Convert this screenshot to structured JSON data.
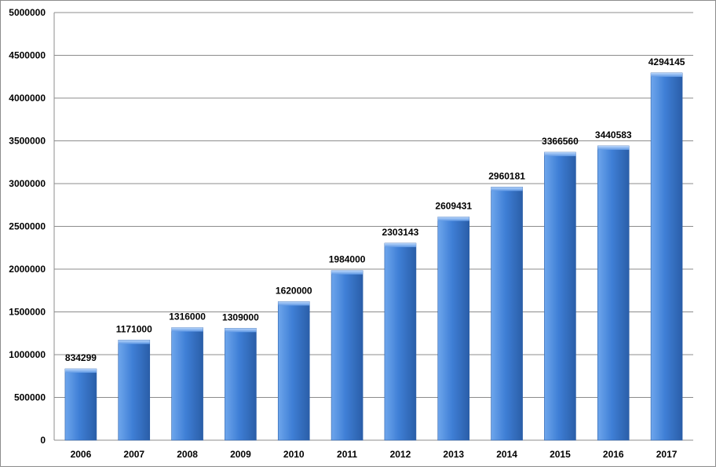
{
  "chart_data": {
    "type": "bar",
    "title": "",
    "xlabel": "",
    "ylabel": "",
    "categories": [
      "2006",
      "2007",
      "2008",
      "2009",
      "2010",
      "2011",
      "2012",
      "2013",
      "2014",
      "2015",
      "2016",
      "2017"
    ],
    "values": [
      834299,
      1171000,
      1316000,
      1309000,
      1620000,
      1984000,
      2303143,
      2609431,
      2960181,
      3366560,
      3440583,
      4294145
    ],
    "data_labels": [
      "834299",
      "1171000",
      "1316000",
      "1309000",
      "1620000",
      "1984000",
      "2303143",
      "2609431",
      "2960181",
      "3366560",
      "3440583",
      "4294145"
    ],
    "ylim": [
      0,
      5000000
    ],
    "y_ticks": [
      0,
      500000,
      1000000,
      1500000,
      2000000,
      2500000,
      3000000,
      3500000,
      4000000,
      4500000,
      5000000
    ],
    "y_tick_labels": [
      "0",
      "500000",
      "1000000",
      "1500000",
      "2000000",
      "2500000",
      "3000000",
      "3500000",
      "4000000",
      "4500000",
      "5000000"
    ],
    "grid": true,
    "legend": "none",
    "colors": {
      "bar_light": "#6ea6ec",
      "bar_mid": "#3f7fd6",
      "bar_dark": "#2a5ea8",
      "grid": "#8c8c8c"
    }
  }
}
